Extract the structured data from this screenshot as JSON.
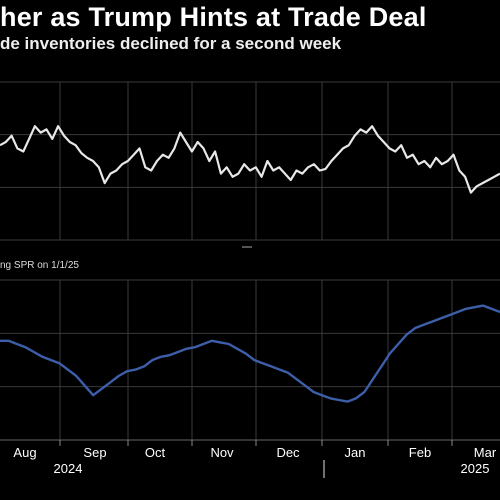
{
  "header": {
    "title": "her as Trump Hints at Trade Deal",
    "subtitle": "de inventories declined for a second week"
  },
  "colors": {
    "background": "#000000",
    "grid": "#3a3a3a",
    "top_series": "#e8e8e8",
    "bottom_series": "#3d5ea8"
  },
  "chart_data": [
    {
      "type": "line",
      "panel": "top",
      "title": "",
      "xlabel": "",
      "ylabel": "",
      "x_ticks": [
        "Aug",
        "Sep",
        "Oct",
        "Nov",
        "Dec",
        "Jan",
        "Feb",
        "Mar"
      ],
      "year_labels": [
        "2024",
        "2025"
      ],
      "grid": true,
      "ylim": [
        0,
        100
      ],
      "series": [
        {
          "values": [
            60,
            62,
            66,
            58,
            56,
            64,
            72,
            68,
            70,
            64,
            72,
            66,
            62,
            60,
            55,
            52,
            50,
            46,
            36,
            42,
            44,
            48,
            50,
            54,
            58,
            46,
            44,
            50,
            54,
            52,
            58,
            68,
            62,
            56,
            62,
            58,
            50,
            56,
            42,
            46,
            40,
            42,
            48,
            44,
            46,
            40,
            50,
            44,
            46,
            42,
            38,
            44,
            42,
            46,
            48,
            44,
            45,
            50,
            54,
            58,
            60,
            66,
            70,
            68,
            72,
            66,
            62,
            58,
            56,
            60,
            52,
            54,
            48,
            50,
            46,
            52,
            48,
            50,
            54,
            44,
            40,
            30,
            34,
            36,
            38,
            40,
            42
          ]
        }
      ]
    },
    {
      "type": "line",
      "panel": "bottom",
      "title": "ng SPR on 1/1/25",
      "xlabel": "",
      "ylabel": "",
      "x_ticks": [
        "Aug",
        "Sep",
        "Oct",
        "Nov",
        "Dec",
        "Jan",
        "Feb",
        "Mar"
      ],
      "year_labels": [
        "2024",
        "2025"
      ],
      "grid": true,
      "ylim": [
        0,
        100
      ],
      "series": [
        {
          "values": [
            62,
            62,
            60,
            58,
            55,
            52,
            50,
            48,
            44,
            40,
            34,
            28,
            32,
            36,
            40,
            43,
            44,
            46,
            50,
            52,
            53,
            55,
            57,
            58,
            60,
            62,
            61,
            60,
            57,
            54,
            50,
            48,
            46,
            44,
            42,
            38,
            34,
            30,
            28,
            26,
            25,
            24,
            26,
            30,
            38,
            46,
            54,
            60,
            66,
            70,
            72,
            74,
            76,
            78,
            80,
            82,
            83,
            84,
            82,
            80
          ]
        }
      ]
    }
  ]
}
